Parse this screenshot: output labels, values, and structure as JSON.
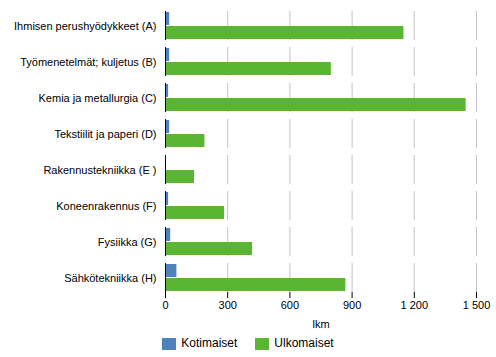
{
  "chart_data": {
    "type": "bar",
    "orientation": "horizontal",
    "categories": [
      "Ihmisen perushyödykkeet (A)",
      "Työmenetelmät; kuljetus (B)",
      "Kemia ja metallurgia (C)",
      "Tekstiilit ja paperi (D)",
      "Rakennustekniikka (E )",
      "Koneenrakennus (F)",
      "Fysiikka (G)",
      "Sähkötekniikka (H)"
    ],
    "series": [
      {
        "name": "Kotimaiset",
        "color": "#4f81bd",
        "values": [
          20,
          20,
          15,
          20,
          0,
          15,
          25,
          55
        ]
      },
      {
        "name": "Ulkomaiset",
        "color": "#5ab532",
        "values": [
          1150,
          800,
          1450,
          190,
          140,
          285,
          420,
          870
        ]
      }
    ],
    "xlabel": "lkm",
    "xlim": [
      0,
      1500
    ],
    "xticks": [
      0,
      300,
      600,
      900,
      {
        "value": 1200,
        "label": "1 200"
      },
      {
        "value": 1500,
        "label": "1 500"
      }
    ],
    "grid": true,
    "legend": "bottom"
  }
}
